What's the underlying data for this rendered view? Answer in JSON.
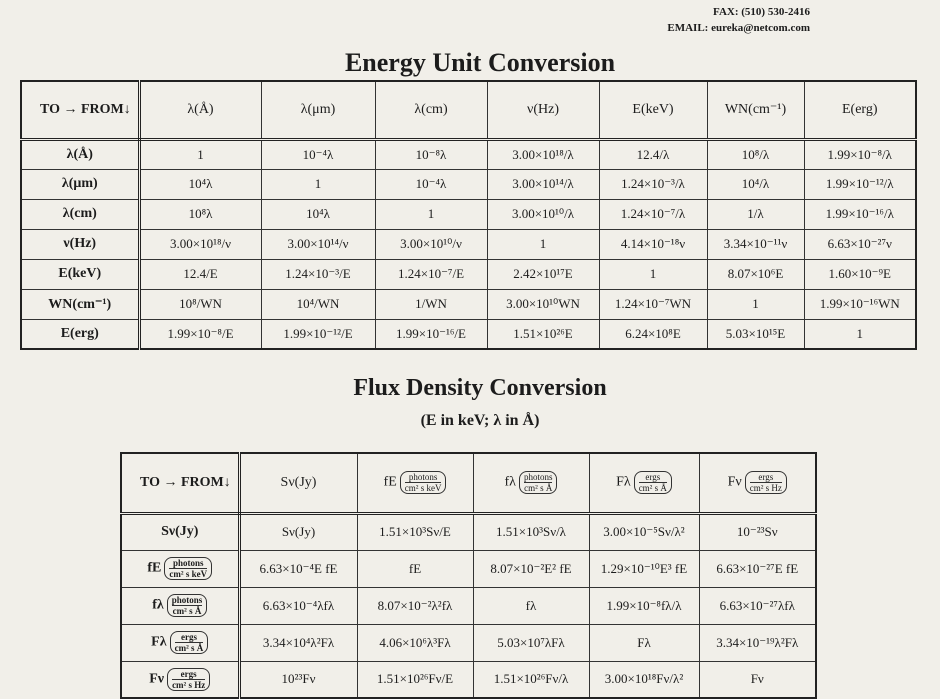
{
  "header": {
    "fax": "FAX: (510) 530-2416",
    "email": "EMAIL: eureka@netcom.com"
  },
  "energy": {
    "title": "Energy Unit Conversion",
    "columns": [
      "TO → FROM↓",
      "λ(Å)",
      "λ(μm)",
      "λ(cm)",
      "ν(Hz)",
      "E(keV)",
      "WN(cm⁻¹)",
      "E(erg)"
    ],
    "rows": [
      [
        "λ(Å)",
        "1",
        "10⁻⁴λ",
        "10⁻⁸λ",
        "3.00×10¹⁸/λ",
        "12.4/λ",
        "10⁸/λ",
        "1.99×10⁻⁸/λ"
      ],
      [
        "λ(μm)",
        "10⁴λ",
        "1",
        "10⁻⁴λ",
        "3.00×10¹⁴/λ",
        "1.24×10⁻³/λ",
        "10⁴/λ",
        "1.99×10⁻¹²/λ"
      ],
      [
        "λ(cm)",
        "10⁸λ",
        "10⁴λ",
        "1",
        "3.00×10¹⁰/λ",
        "1.24×10⁻⁷/λ",
        "1/λ",
        "1.99×10⁻¹⁶/λ"
      ],
      [
        "ν(Hz)",
        "3.00×10¹⁸/ν",
        "3.00×10¹⁴/ν",
        "3.00×10¹⁰/ν",
        "1",
        "4.14×10⁻¹⁸ν",
        "3.34×10⁻¹¹ν",
        "6.63×10⁻²⁷ν"
      ],
      [
        "E(keV)",
        "12.4/E",
        "1.24×10⁻³/E",
        "1.24×10⁻⁷/E",
        "2.42×10¹⁷E",
        "1",
        "8.07×10⁶E",
        "1.60×10⁻⁹E"
      ],
      [
        "WN(cm⁻¹)",
        "10⁸/WN",
        "10⁴/WN",
        "1/WN",
        "3.00×10¹⁰WN",
        "1.24×10⁻⁷WN",
        "1",
        "1.99×10⁻¹⁶WN"
      ],
      [
        "E(erg)",
        "1.99×10⁻⁸/E",
        "1.99×10⁻¹²/E",
        "1.99×10⁻¹⁶/E",
        "1.51×10²⁶E",
        "6.24×10⁸E",
        "5.03×10¹⁵E",
        "1"
      ]
    ]
  },
  "flux": {
    "title": "Flux Density Conversion",
    "subtitle": "(E in keV; λ in Å)",
    "columns": [
      "TO → FROM↓",
      "Sν(Jy)",
      {
        "symbol": "fE",
        "numerator": "photons",
        "denominator": "cm² s keV"
      },
      {
        "symbol": "fλ",
        "numerator": "photons",
        "denominator": "cm² s Å"
      },
      {
        "symbol": "Fλ",
        "numerator": "ergs",
        "denominator": "cm² s Å"
      },
      {
        "symbol": "Fν",
        "numerator": "ergs",
        "denominator": "cm² s Hz"
      }
    ],
    "rows": [
      [
        "Sν(Jy)",
        "Sν(Jy)",
        "1.51×10³Sν/E",
        "1.51×10³Sν/λ",
        "3.00×10⁻⁵Sν/λ²",
        "10⁻²³Sν"
      ],
      [
        {
          "symbol": "fE",
          "numerator": "photons",
          "denominator": "cm² s keV"
        },
        "6.63×10⁻⁴E fE",
        "fE",
        "8.07×10⁻²E² fE",
        "1.29×10⁻¹⁰E³ fE",
        "6.63×10⁻²⁷E fE"
      ],
      [
        {
          "symbol": "fλ",
          "numerator": "photons",
          "denominator": "cm² s Å"
        },
        "6.63×10⁻⁴λfλ",
        "8.07×10⁻²λ²fλ",
        "fλ",
        "1.99×10⁻⁸fλ/λ",
        "6.63×10⁻²⁷λfλ"
      ],
      [
        {
          "symbol": "Fλ",
          "numerator": "ergs",
          "denominator": "cm² s Å"
        },
        "3.34×10⁴λ²Fλ",
        "4.06×10⁶λ³Fλ",
        "5.03×10⁷λFλ",
        "Fλ",
        "3.34×10⁻¹⁹λ²Fλ"
      ],
      [
        {
          "symbol": "Fν",
          "numerator": "ergs",
          "denominator": "cm² s Hz"
        },
        "10²³Fν",
        "1.51×10²⁶Fν/E",
        "1.51×10²⁶Fν/λ",
        "3.00×10¹⁸Fν/λ²",
        "Fν"
      ]
    ]
  }
}
